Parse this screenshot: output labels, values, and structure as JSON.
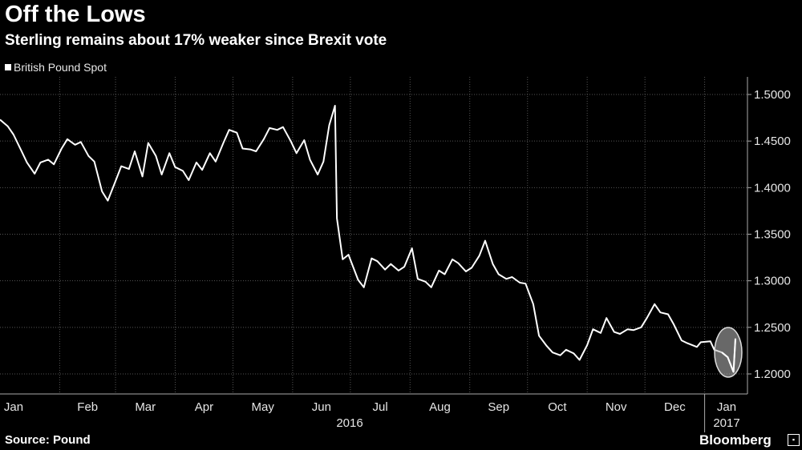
{
  "header": {
    "title": "Off the Lows",
    "subtitle": "Sterling remains about 17% weaker since Brexit vote"
  },
  "footer": {
    "source": "Source: Pound",
    "brand": "Bloomberg",
    "brand_icon": "bloomberg-terminal-icon"
  },
  "colors": {
    "background": "#000000",
    "line": "#ffffff",
    "grid": "#555555",
    "highlight": "#bdbdbd"
  },
  "chart_data": {
    "type": "line",
    "title": "Off the Lows",
    "subtitle": "Sterling remains about 17% weaker since Brexit vote",
    "xlabel": "",
    "ylabel": "",
    "ylim": [
      1.18,
      1.53
    ],
    "yticks": [
      1.5,
      1.45,
      1.4,
      1.35,
      1.3,
      1.25,
      1.2
    ],
    "ytick_labels": [
      "1.5000",
      "1.4500",
      "1.4000",
      "1.3500",
      "1.3000",
      "1.2500",
      "1.2000"
    ],
    "y_axis_side": "right",
    "grid": true,
    "legend_position": "top-left",
    "x_ticks": [
      "Jan",
      "Feb",
      "Mar",
      "Apr",
      "May",
      "Jun",
      "Jul",
      "Aug",
      "Sep",
      "Oct",
      "Nov",
      "Dec",
      "Jan"
    ],
    "x_year_labels": [
      "2016",
      "2017"
    ],
    "annotations": [
      {
        "type": "ellipse-highlight",
        "around": "latest values in January 2017"
      }
    ],
    "series": [
      {
        "name": "British Pound Spot",
        "x": [
          "2016-01-01",
          "2016-01-05",
          "2016-01-08",
          "2016-01-12",
          "2016-01-15",
          "2016-01-19",
          "2016-01-22",
          "2016-01-26",
          "2016-01-29",
          "2016-02-02",
          "2016-02-05",
          "2016-02-09",
          "2016-02-12",
          "2016-02-16",
          "2016-02-19",
          "2016-02-23",
          "2016-02-26",
          "2016-03-01",
          "2016-03-04",
          "2016-03-08",
          "2016-03-11",
          "2016-03-15",
          "2016-03-18",
          "2016-03-22",
          "2016-03-25",
          "2016-03-29",
          "2016-04-01",
          "2016-04-05",
          "2016-04-08",
          "2016-04-12",
          "2016-04-15",
          "2016-04-19",
          "2016-04-22",
          "2016-04-26",
          "2016-04-29",
          "2016-05-03",
          "2016-05-06",
          "2016-05-10",
          "2016-05-13",
          "2016-05-17",
          "2016-05-20",
          "2016-05-24",
          "2016-05-27",
          "2016-05-31",
          "2016-06-03",
          "2016-06-07",
          "2016-06-10",
          "2016-06-14",
          "2016-06-17",
          "2016-06-20",
          "2016-06-23",
          "2016-06-24",
          "2016-06-27",
          "2016-06-30",
          "2016-07-05",
          "2016-07-08",
          "2016-07-12",
          "2016-07-15",
          "2016-07-19",
          "2016-07-22",
          "2016-07-26",
          "2016-07-29",
          "2016-08-02",
          "2016-08-05",
          "2016-08-09",
          "2016-08-12",
          "2016-08-16",
          "2016-08-19",
          "2016-08-23",
          "2016-08-26",
          "2016-08-30",
          "2016-09-02",
          "2016-09-06",
          "2016-09-09",
          "2016-09-13",
          "2016-09-16",
          "2016-09-20",
          "2016-09-23",
          "2016-09-27",
          "2016-09-30",
          "2016-10-04",
          "2016-10-07",
          "2016-10-11",
          "2016-10-14",
          "2016-10-18",
          "2016-10-21",
          "2016-10-25",
          "2016-10-28",
          "2016-11-01",
          "2016-11-04",
          "2016-11-08",
          "2016-11-11",
          "2016-11-15",
          "2016-11-18",
          "2016-11-22",
          "2016-11-25",
          "2016-11-29",
          "2016-12-02",
          "2016-12-06",
          "2016-12-09",
          "2016-12-13",
          "2016-12-16",
          "2016-12-20",
          "2016-12-23",
          "2016-12-28",
          "2016-12-30",
          "2017-01-04",
          "2017-01-06",
          "2017-01-10",
          "2017-01-13",
          "2017-01-16",
          "2017-01-17"
        ],
        "values": [
          1.473,
          1.466,
          1.457,
          1.44,
          1.427,
          1.415,
          1.427,
          1.43,
          1.425,
          1.442,
          1.452,
          1.446,
          1.449,
          1.434,
          1.428,
          1.396,
          1.386,
          1.407,
          1.423,
          1.42,
          1.439,
          1.412,
          1.448,
          1.434,
          1.414,
          1.437,
          1.422,
          1.418,
          1.408,
          1.427,
          1.419,
          1.437,
          1.428,
          1.448,
          1.462,
          1.459,
          1.442,
          1.441,
          1.439,
          1.452,
          1.464,
          1.462,
          1.465,
          1.45,
          1.437,
          1.451,
          1.43,
          1.414,
          1.428,
          1.467,
          1.488,
          1.367,
          1.323,
          1.328,
          1.301,
          1.293,
          1.324,
          1.321,
          1.312,
          1.318,
          1.311,
          1.315,
          1.335,
          1.302,
          1.299,
          1.293,
          1.311,
          1.307,
          1.323,
          1.319,
          1.31,
          1.314,
          1.327,
          1.343,
          1.318,
          1.307,
          1.302,
          1.304,
          1.298,
          1.297,
          1.275,
          1.241,
          1.23,
          1.223,
          1.22,
          1.226,
          1.222,
          1.215,
          1.231,
          1.248,
          1.244,
          1.26,
          1.245,
          1.243,
          1.248,
          1.247,
          1.25,
          1.26,
          1.275,
          1.266,
          1.264,
          1.253,
          1.236,
          1.233,
          1.229,
          1.234,
          1.235,
          1.226,
          1.223,
          1.218,
          1.202,
          1.238
        ]
      }
    ]
  }
}
